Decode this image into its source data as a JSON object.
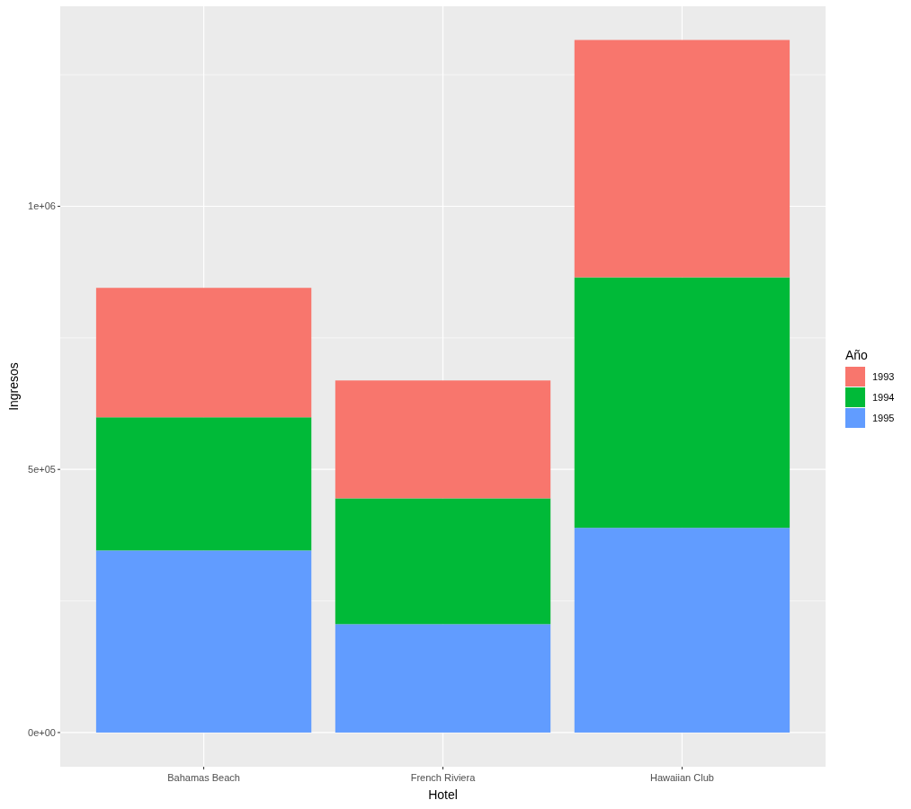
{
  "chart_data": {
    "type": "bar",
    "stacked": true,
    "xlabel": "Hotel",
    "ylabel": "Ingresos",
    "legend_title": "Año",
    "legend": "right",
    "categories": [
      "Bahamas Beach",
      "French Riviera",
      "Hawaiian Club"
    ],
    "series": [
      {
        "name": "1995",
        "color": "#619cff",
        "values": [
          346000,
          206000,
          389000
        ]
      },
      {
        "name": "1994",
        "color": "#00ba38",
        "values": [
          253000,
          239000,
          476000
        ]
      },
      {
        "name": "1993",
        "color": "#f8766d",
        "values": [
          246000,
          224000,
          451000
        ]
      }
    ],
    "ylim": [
      -65000,
      1380000
    ],
    "yticks": [
      {
        "value": 0,
        "label": "0e+00"
      },
      {
        "value": 250000,
        "label": null
      },
      {
        "value": 500000,
        "label": "5e+05"
      },
      {
        "value": 750000,
        "label": null
      },
      {
        "value": 1000000,
        "label": "1e+06"
      },
      {
        "value": 1250000,
        "label": null
      }
    ],
    "grid": true
  }
}
